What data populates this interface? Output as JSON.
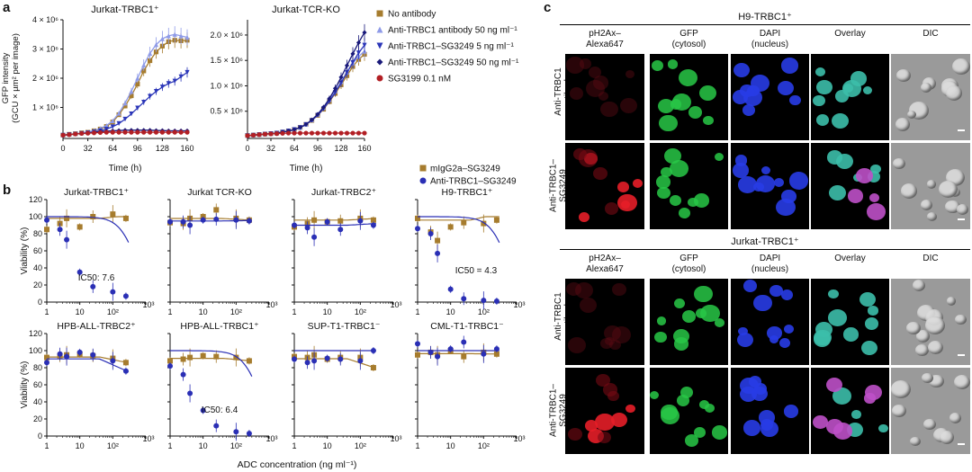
{
  "panel_labels": {
    "a": "a",
    "b": "b",
    "c": "c"
  },
  "colors": {
    "no_antibody": "#a67c2e",
    "anti_trbc1_antibody": "#8f9be8",
    "anti_sg_5": "#2b36b8",
    "anti_sg_50": "#19197a",
    "sg3199": "#b21f24",
    "migg": "#a67c2e",
    "anti_sg": "#2a2fb5"
  },
  "legend_a": [
    {
      "label": "No antibody",
      "marker": "square",
      "color": "#a67c2e"
    },
    {
      "label": "Anti-TRBC1 antibody 50 ng ml⁻¹",
      "marker": "triangle-up",
      "color": "#8f9be8"
    },
    {
      "label": "Anti-TRBC1–SG3249 5 ng ml⁻¹",
      "marker": "triangle-down",
      "color": "#2b36b8"
    },
    {
      "label": "Anti-TRBC1–SG3249 50 ng ml⁻¹",
      "marker": "diamond",
      "color": "#19197a"
    },
    {
      "label": "SG3199 0.1 nM",
      "marker": "circle",
      "color": "#b21f24"
    }
  ],
  "legend_b": [
    {
      "label": "mIgG2a–SG3249",
      "marker": "square",
      "color": "#a67c2e"
    },
    {
      "label": "Anti-TRBC1–SG3249",
      "marker": "circle",
      "color": "#2a2fb5"
    }
  ],
  "chart_data": [
    {
      "type": "line",
      "title": "Jurkat-TRBC1⁺",
      "xlabel": "Time (h)",
      "ylabel": "GFP intensity (GCU × µm² per image)",
      "xlim": [
        0,
        160
      ],
      "ylim": [
        0,
        4000000
      ],
      "xticks": [
        "0",
        "32",
        "64",
        "96",
        "128",
        "160"
      ],
      "yticks": [
        "1 × 10⁶",
        "2 × 10⁶",
        "3 × 10⁶",
        "4 × 10⁶"
      ],
      "x": [
        0,
        8,
        16,
        24,
        32,
        40,
        48,
        56,
        64,
        72,
        80,
        88,
        96,
        104,
        112,
        120,
        128,
        136,
        144,
        152,
        160
      ],
      "series": [
        {
          "name": "No antibody",
          "values": [
            50000,
            80000,
            100000,
            130000,
            150000,
            200000,
            260000,
            350000,
            500000,
            750000,
            1050000,
            1400000,
            1800000,
            2250000,
            2600000,
            2900000,
            3100000,
            3250000,
            3300000,
            3280000,
            3300000
          ]
        },
        {
          "name": "Anti-TRBC1 antibody 50 ng ml⁻¹",
          "values": [
            50000,
            80000,
            100000,
            130000,
            160000,
            210000,
            280000,
            380000,
            540000,
            800000,
            1150000,
            1550000,
            2000000,
            2450000,
            2850000,
            3150000,
            3350000,
            3450000,
            3500000,
            3450000,
            3400000
          ]
        },
        {
          "name": "Anti-TRBC1–SG3249 5 ng ml⁻¹",
          "values": [
            50000,
            70000,
            90000,
            110000,
            130000,
            160000,
            200000,
            260000,
            340000,
            450000,
            600000,
            780000,
            980000,
            1180000,
            1380000,
            1550000,
            1700000,
            1820000,
            1900000,
            2050000,
            2200000
          ]
        },
        {
          "name": "Anti-TRBC1–SG3249 50 ng ml⁻¹",
          "values": [
            50000,
            70000,
            90000,
            110000,
            130000,
            150000,
            170000,
            190000,
            200000,
            210000,
            220000,
            220000,
            220000,
            220000,
            220000,
            210000,
            210000,
            200000,
            200000,
            200000,
            200000
          ]
        },
        {
          "name": "SG3199 0.1 nM",
          "values": [
            50000,
            70000,
            90000,
            110000,
            120000,
            130000,
            140000,
            150000,
            150000,
            150000,
            150000,
            150000,
            150000,
            150000,
            150000,
            150000,
            150000,
            150000,
            150000,
            150000,
            150000
          ]
        }
      ]
    },
    {
      "type": "line",
      "title": "Jurkat-TCR-KO",
      "xlabel": "Time (h)",
      "xlim": [
        0,
        160
      ],
      "ylim": [
        0,
        2300000
      ],
      "xticks": [
        "0",
        "32",
        "64",
        "96",
        "128",
        "160"
      ],
      "yticks": [
        "0.5 × 10⁶",
        "1.0 × 10⁶",
        "1.5 × 10⁶",
        "2.0 × 10⁶"
      ],
      "x": [
        0,
        8,
        16,
        24,
        32,
        40,
        48,
        56,
        64,
        72,
        80,
        88,
        96,
        104,
        112,
        120,
        128,
        136,
        144,
        152,
        160
      ],
      "series": [
        {
          "name": "No antibody",
          "values": [
            20000,
            30000,
            40000,
            50000,
            60000,
            70000,
            90000,
            110000,
            140000,
            180000,
            240000,
            320000,
            420000,
            540000,
            690000,
            850000,
            1020000,
            1200000,
            1380000,
            1520000,
            1620000
          ]
        },
        {
          "name": "Anti-TRBC1 antibody 50 ng ml⁻¹",
          "values": [
            20000,
            30000,
            40000,
            50000,
            60000,
            70000,
            90000,
            110000,
            140000,
            180000,
            240000,
            330000,
            440000,
            570000,
            730000,
            900000,
            1080000,
            1270000,
            1450000,
            1580000,
            1680000
          ]
        },
        {
          "name": "Anti-TRBC1–SG3249 5 ng ml⁻¹",
          "values": [
            20000,
            30000,
            40000,
            50000,
            60000,
            70000,
            90000,
            110000,
            140000,
            180000,
            240000,
            320000,
            420000,
            550000,
            700000,
            870000,
            1060000,
            1260000,
            1460000,
            1650000,
            1800000
          ]
        },
        {
          "name": "Anti-TRBC1–SG3249 50 ng ml⁻¹",
          "values": [
            20000,
            30000,
            40000,
            50000,
            60000,
            70000,
            90000,
            110000,
            140000,
            180000,
            240000,
            330000,
            440000,
            580000,
            750000,
            950000,
            1170000,
            1400000,
            1630000,
            1850000,
            2050000
          ]
        },
        {
          "name": "SG3199 0.1 nM",
          "values": [
            20000,
            30000,
            40000,
            50000,
            55000,
            60000,
            65000,
            70000,
            70000,
            70000,
            70000,
            70000,
            70000,
            70000,
            70000,
            70000,
            70000,
            70000,
            70000,
            70000,
            70000
          ]
        }
      ]
    },
    {
      "type": "scatter",
      "title": "Jurkat-TRBC1⁺",
      "ylabel": "Viability (%)",
      "xscale": "log",
      "xlim": [
        1,
        1000
      ],
      "ylim": [
        0,
        120
      ],
      "x": [
        1,
        2.5,
        4,
        10,
        25,
        100,
        250
      ],
      "series": [
        {
          "name": "mIgG2a–SG3249",
          "values": [
            85,
            92,
            98,
            88,
            100,
            103,
            98
          ]
        },
        {
          "name": "Anti-TRBC1–SG3249",
          "values": [
            96,
            85,
            73,
            35,
            18,
            12,
            7
          ]
        }
      ],
      "annotation": "IC50: 7.6"
    },
    {
      "type": "scatter",
      "title": "Jurkat TCR-KO",
      "xscale": "log",
      "xlim": [
        1,
        1000
      ],
      "ylim": [
        0,
        120
      ],
      "x": [
        1,
        2.5,
        4,
        10,
        25,
        100,
        250
      ],
      "series": [
        {
          "name": "mIgG2a–SG3249",
          "values": [
            93,
            92,
            98,
            100,
            108,
            98,
            96
          ]
        },
        {
          "name": "Anti-TRBC1–SG3249",
          "values": [
            94,
            94,
            90,
            96,
            97,
            96,
            95
          ]
        }
      ]
    },
    {
      "type": "scatter",
      "title": "Jurkat-TRBC2⁺",
      "xscale": "log",
      "xlim": [
        1,
        1000
      ],
      "ylim": [
        0,
        120
      ],
      "x": [
        1,
        2.5,
        4,
        10,
        25,
        100,
        250
      ],
      "series": [
        {
          "name": "mIgG2a–SG3249",
          "values": [
            88,
            92,
            96,
            94,
            95,
            98,
            96
          ]
        },
        {
          "name": "Anti-TRBC1–SG3249",
          "values": [
            90,
            87,
            76,
            94,
            85,
            95,
            90
          ]
        }
      ]
    },
    {
      "type": "scatter",
      "title": "H9-TRBC1⁺",
      "xscale": "log",
      "xlim": [
        1,
        1000
      ],
      "ylim": [
        0,
        120
      ],
      "x": [
        1,
        2.5,
        4,
        10,
        25,
        100,
        250
      ],
      "series": [
        {
          "name": "mIgG2a–SG3249",
          "values": [
            98,
            82,
            72,
            88,
            93,
            92,
            96
          ]
        },
        {
          "name": "Anti-TRBC1–SG3249",
          "values": [
            86,
            80,
            57,
            15,
            4,
            2,
            1
          ]
        }
      ],
      "annotation": "IC50 = 4.3"
    },
    {
      "type": "scatter",
      "title": "HPB-ALL-TRBC2⁺",
      "ylabel": "Viability (%)",
      "xscale": "log",
      "xlim": [
        1,
        1000
      ],
      "ylim": [
        0,
        120
      ],
      "x": [
        1,
        2.5,
        4,
        10,
        25,
        100,
        250
      ],
      "series": [
        {
          "name": "mIgG2a–SG3249",
          "values": [
            92,
            94,
            95,
            96,
            94,
            91,
            86
          ]
        },
        {
          "name": "Anti-TRBC1–SG3249",
          "values": [
            86,
            96,
            93,
            98,
            95,
            88,
            76
          ]
        }
      ]
    },
    {
      "type": "scatter",
      "title": "HPB-ALL-TRBC1⁺",
      "xscale": "log",
      "xlim": [
        1,
        1000
      ],
      "ylim": [
        0,
        120
      ],
      "x": [
        1,
        2.5,
        4,
        10,
        25,
        100,
        250
      ],
      "series": [
        {
          "name": "mIgG2a–SG3249",
          "values": [
            88,
            90,
            92,
            94,
            93,
            92,
            88
          ]
        },
        {
          "name": "Anti-TRBC1–SG3249",
          "values": [
            82,
            72,
            50,
            30,
            12,
            5,
            3
          ]
        }
      ],
      "annotation": "IC50: 6.4"
    },
    {
      "type": "scatter",
      "title": "SUP-T1-TRBC1⁻",
      "xscale": "log",
      "xlim": [
        1,
        1000
      ],
      "ylim": [
        0,
        120
      ],
      "x": [
        1,
        2.5,
        4,
        10,
        25,
        100,
        250
      ],
      "series": [
        {
          "name": "mIgG2a–SG3249",
          "values": [
            93,
            92,
            95,
            90,
            92,
            92,
            80
          ]
        },
        {
          "name": "Anti-TRBC1–SG3249",
          "values": [
            90,
            86,
            88,
            91,
            90,
            88,
            100
          ]
        }
      ]
    },
    {
      "type": "scatter",
      "title": "CML-T1-TRBC1⁻",
      "xscale": "log",
      "xlim": [
        1,
        1000
      ],
      "ylim": [
        0,
        120
      ],
      "x": [
        1,
        2.5,
        4,
        10,
        25,
        100,
        250
      ],
      "series": [
        {
          "name": "mIgG2a–SG3249",
          "values": [
            95,
            98,
            95,
            100,
            93,
            98,
            96
          ]
        },
        {
          "name": "Anti-TRBC1–SG3249",
          "values": [
            108,
            98,
            93,
            102,
            110,
            96,
            102
          ]
        }
      ]
    }
  ],
  "panel_b_axes": {
    "xticks": [
      "1",
      "10",
      "10²",
      "10³"
    ],
    "yticks": [
      "0",
      "20",
      "40",
      "60",
      "80",
      "100",
      "120"
    ],
    "xlabel": "ADC concentration (ng ml⁻¹)"
  },
  "micro": {
    "top": {
      "title": "H9-TRBC1⁺",
      "columns": [
        "pH2Ax–\nAlexa647",
        "GFP\n(cytosol)",
        "DAPI\n(nucleus)",
        "Overlay",
        "DIC"
      ],
      "rows": [
        "Anti-TRBC1\nantibody",
        "Anti-TRBC1–SG3249\nADC"
      ]
    },
    "bottom": {
      "title": "Jurkat-TRBC1⁺",
      "columns": [
        "pH2Ax–\nAlexa647",
        "GFP\n(cytosol)",
        "DAPI\n(nucleus)",
        "Overlay",
        "DIC"
      ],
      "rows": [
        "Anti-TRBC1\nantibody",
        "Anti-TRBC1–SG3249\nADC"
      ]
    }
  }
}
